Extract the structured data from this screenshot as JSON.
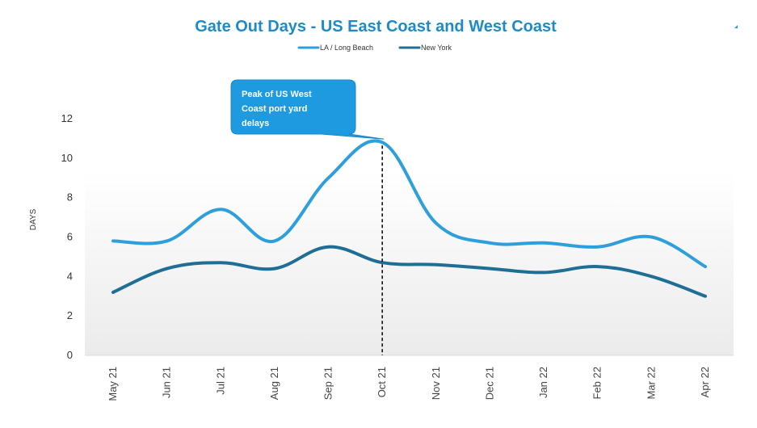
{
  "chart_data": {
    "type": "line",
    "title": "Gate Out Days - US East Coast and West Coast",
    "ylabel": "DAYS",
    "xlabel": "",
    "ylim": [
      0,
      12
    ],
    "yticks": [
      0,
      2,
      4,
      6,
      8,
      10,
      12
    ],
    "categories": [
      "May 21",
      "Jun 21",
      "Jul 21",
      "Aug 21",
      "Sep 21",
      "Oct 21",
      "Nov 21",
      "Dec 21",
      "Jan 22",
      "Feb 22",
      "Mar 22",
      "Apr 22"
    ],
    "series": [
      {
        "name": "LA / Long Beach",
        "color": "#2E9FDB",
        "values": [
          5.8,
          5.8,
          7.4,
          5.8,
          9.0,
          10.8,
          6.7,
          5.7,
          5.7,
          5.5,
          6.0,
          4.5
        ]
      },
      {
        "name": "New York",
        "color": "#1F6E96",
        "values": [
          3.2,
          4.4,
          4.7,
          4.4,
          5.5,
          4.7,
          4.6,
          4.4,
          4.2,
          4.5,
          4.0,
          3.0
        ]
      }
    ],
    "legend_placement": "top-center",
    "grid": false,
    "annotation": {
      "text_lines": [
        "Peak of US West",
        "Coast port yard",
        "delays"
      ],
      "category": "Oct 21",
      "style": "dashed vertical line"
    },
    "colors": {
      "title": "#1F8BC6",
      "callout_fill": "#1E9BE0"
    }
  }
}
